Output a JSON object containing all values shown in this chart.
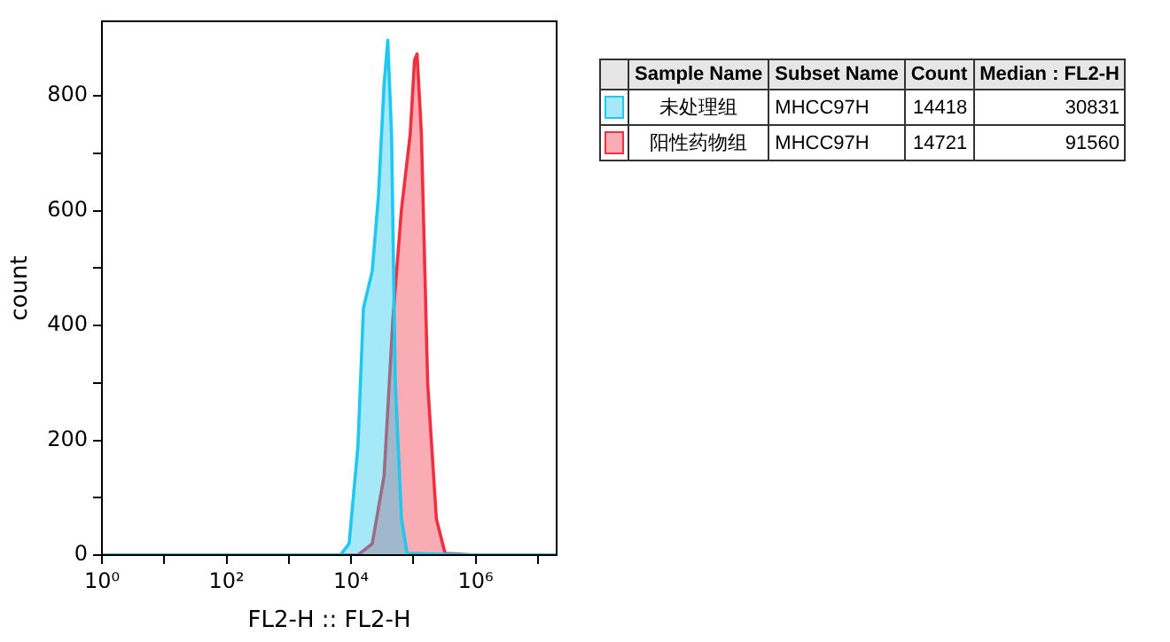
{
  "chart_data": {
    "type": "area",
    "xlabel": "FL2-H :: FL2-H",
    "ylabel": "count",
    "log": "x",
    "grid": false,
    "legend": "right",
    "marker": "none",
    "xlim": [
      1,
      20000000
    ],
    "ylim": [
      0,
      930
    ],
    "xticks": [
      {
        "value": 1,
        "label": "10⁰"
      },
      {
        "value": 10,
        "label": null
      },
      {
        "value": 100,
        "label": "10²"
      },
      {
        "value": 1000,
        "label": null
      },
      {
        "value": 10000,
        "label": "10⁴"
      },
      {
        "value": 100000,
        "label": null
      },
      {
        "value": 1000000,
        "label": "10⁶"
      },
      {
        "value": 10000000,
        "label": null
      }
    ],
    "yticks": [
      0,
      {
        "value": 100,
        "label": null
      },
      200,
      {
        "value": 300,
        "label": null
      },
      400,
      {
        "value": 500,
        "label": null
      },
      600,
      {
        "value": 700,
        "label": null
      },
      800
    ],
    "legend_title": "Sample Name",
    "annotations": [
      "Subset Name",
      "Count",
      "Median : FL2-H",
      "MHCC97H",
      "14418",
      "30831",
      "MHCC97H",
      "14721",
      "91560"
    ],
    "series": [
      {
        "name": "未处理组",
        "color": "#1ec8f0",
        "x": [
          1,
          6700,
          9300,
          12900,
          15800,
          21900,
          27500,
          33900,
          38900,
          44700,
          51300,
          64600,
          79400,
          1000000,
          20000000
        ],
        "values": [
          0,
          0,
          20,
          190,
          430,
          495,
          625,
          820,
          897,
          733,
          300,
          63,
          3,
          0,
          0
        ]
      },
      {
        "name": "阳性药物组",
        "color": "#f03040",
        "x": [
          1,
          12900,
          21900,
          33900,
          46800,
          64600,
          89100,
          104700,
          114800,
          134900,
          169800,
          234400,
          323600,
          1000000,
          20000000
        ],
        "values": [
          0,
          0,
          20,
          138,
          409,
          603,
          733,
          863,
          873,
          733,
          300,
          63,
          3,
          0,
          0
        ]
      }
    ]
  }
}
